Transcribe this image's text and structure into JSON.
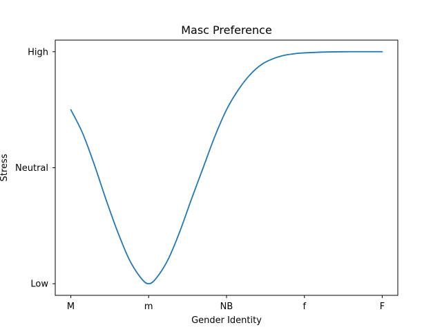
{
  "chart_data": {
    "type": "line",
    "title": "Masc Preference",
    "xlabel": "Gender Identity",
    "ylabel": "Stress",
    "x_ticks": [
      "M",
      "m",
      "NB",
      "f",
      "F"
    ],
    "x_tick_values": [
      0,
      1,
      2,
      3,
      4
    ],
    "y_ticks": [
      "Low",
      "Neutral",
      "High"
    ],
    "y_tick_values": [
      0,
      1,
      2
    ],
    "xlim": [
      -0.2,
      4.2
    ],
    "ylim": [
      -0.1,
      2.1
    ],
    "grid": false,
    "colors": {
      "series": "#1f77b4"
    },
    "series": [
      {
        "x": [
          0,
          0.15,
          0.3,
          0.45,
          0.6,
          0.75,
          0.9,
          1.0,
          1.1,
          1.25,
          1.4,
          1.55,
          1.7,
          1.85,
          2.0,
          2.15,
          2.3,
          2.45,
          2.6,
          2.75,
          2.9,
          3.0,
          3.2,
          3.4,
          3.6,
          3.8,
          4.0
        ],
        "y": [
          1.5,
          1.3,
          1.03,
          0.73,
          0.45,
          0.21,
          0.05,
          0.0,
          0.05,
          0.21,
          0.45,
          0.73,
          1.0,
          1.27,
          1.5,
          1.67,
          1.8,
          1.89,
          1.94,
          1.97,
          1.985,
          1.99,
          1.996,
          1.999,
          2.0,
          2.0,
          2.0
        ]
      }
    ]
  }
}
